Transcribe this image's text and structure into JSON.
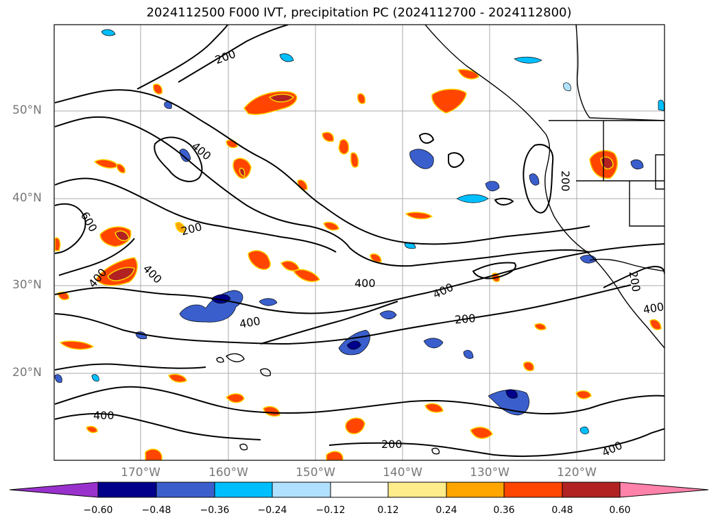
{
  "title": "2024112500 F000 IVT, precipitation PC (2024112700 - 2024112800)",
  "lat_labels": [
    "50°N",
    "40°N",
    "30°N",
    "20°N"
  ],
  "lon_labels": [
    "170°W",
    "160°W",
    "150°W",
    "140°W",
    "130°W",
    "120°W"
  ],
  "ivt_contour_labels": [
    "200",
    "200",
    "400",
    "200",
    "600",
    "400",
    "400",
    "400",
    "400",
    "400",
    "200",
    "200",
    "400",
    "200",
    "400",
    "400"
  ],
  "colorbar": {
    "tick_labels": [
      "−0.60",
      "−0.48",
      "−0.36",
      "−0.24",
      "−0.12",
      "0.12",
      "0.24",
      "0.36",
      "0.48",
      "0.60"
    ],
    "colors": [
      "#9932cc",
      "#00008b",
      "#3a5fcd",
      "#00bfff",
      "#b0e2ff",
      "#ffffff",
      "#ffec8b",
      "#ffa500",
      "#ff4500",
      "#b22222",
      "#ff82ab"
    ]
  }
}
